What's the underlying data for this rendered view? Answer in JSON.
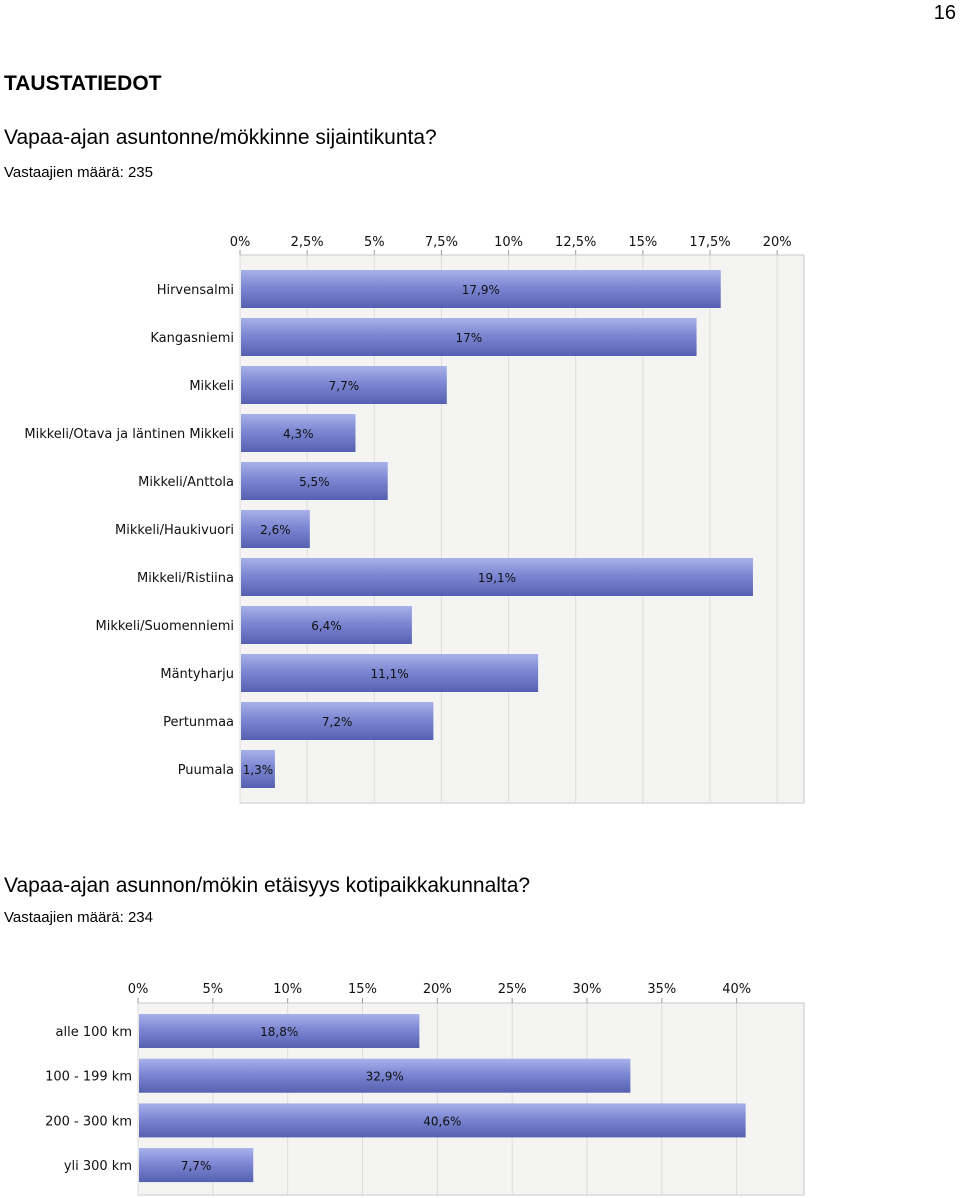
{
  "page_number": "16",
  "section_title": "TAUSTATIEDOT",
  "questions": [
    {
      "title": "Vapaa-ajan asuntonne/mökkinne sijaintikunta?",
      "respondents": "Vastaajien määrä: 235"
    },
    {
      "title": "Vapaa-ajan asunnon/mökin etäisyys kotipaikkakunnalta?",
      "respondents": "Vastaajien määrä: 234"
    }
  ],
  "colors": {
    "bar": "#7d87d3",
    "bar_dark": "#5560b0",
    "plot_bg": "#f4f5f2",
    "grid": "#dcdcdc"
  },
  "chart_data": [
    {
      "type": "bar",
      "orientation": "horizontal",
      "categories": [
        "Hirvensalmi",
        "Kangasniemi",
        "Mikkeli",
        "Mikkeli/Otava ja läntinen Mikkeli",
        "Mikkeli/Anttola",
        "Mikkeli/Haukivuori",
        "Mikkeli/Ristiina",
        "Mikkeli/Suomenniemi",
        "Mäntyharju",
        "Pertunmaa",
        "Puumala"
      ],
      "values": [
        17.9,
        17,
        7.7,
        4.3,
        5.5,
        2.6,
        19.1,
        6.4,
        11.1,
        7.2,
        1.3
      ],
      "data_labels": [
        "17,9%",
        "17%",
        "7,7%",
        "4,3%",
        "5,5%",
        "2,6%",
        "19,1%",
        "6,4%",
        "11,1%",
        "7,2%",
        "1,3%"
      ],
      "ticks": [
        0,
        2.5,
        5,
        7.5,
        10,
        12.5,
        15,
        17.5,
        20
      ],
      "tick_labels": [
        "0%",
        "2,5%",
        "5%",
        "7,5%",
        "10%",
        "12,5%",
        "15%",
        "17,5%",
        "20%"
      ],
      "xlim": [
        0,
        21
      ],
      "axis_position": "top",
      "grid": true
    },
    {
      "type": "bar",
      "orientation": "horizontal",
      "categories": [
        "alle 100 km",
        "100 - 199 km",
        "200 - 300 km",
        "yli 300 km"
      ],
      "values": [
        18.8,
        32.9,
        40.6,
        7.7
      ],
      "data_labels": [
        "18,8%",
        "32,9%",
        "40,6%",
        "7,7%"
      ],
      "ticks": [
        0,
        5,
        10,
        15,
        20,
        25,
        30,
        35,
        40
      ],
      "tick_labels": [
        "0%",
        "5%",
        "10%",
        "15%",
        "20%",
        "25%",
        "30%",
        "35%",
        "40%"
      ],
      "xlim": [
        0,
        44.5
      ],
      "axis_position": "top",
      "grid": true
    }
  ]
}
